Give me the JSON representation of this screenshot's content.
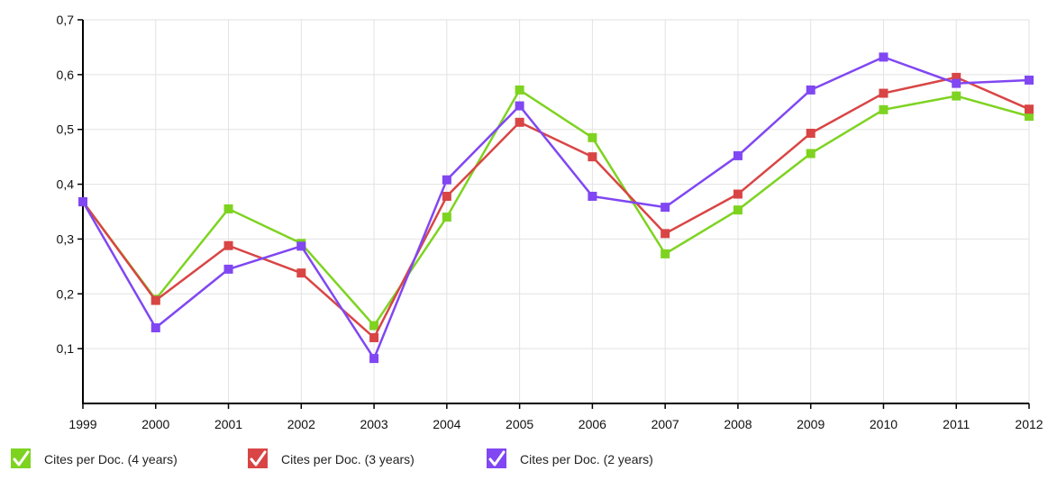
{
  "chart_data": {
    "type": "line",
    "title": "",
    "xlabel": "",
    "ylabel": "",
    "x": [
      "1999",
      "2000",
      "2001",
      "2002",
      "2003",
      "2004",
      "2005",
      "2006",
      "2007",
      "2008",
      "2009",
      "2010",
      "2011",
      "2012"
    ],
    "ylim": [
      0,
      0.7
    ],
    "y_ticks": [
      {
        "value": 0.1,
        "label": "0,1"
      },
      {
        "value": 0.2,
        "label": "0,2"
      },
      {
        "value": 0.3,
        "label": "0,3"
      },
      {
        "value": 0.4,
        "label": "0,4"
      },
      {
        "value": 0.5,
        "label": "0,5"
      },
      {
        "value": 0.6,
        "label": "0,6"
      },
      {
        "value": 0.7,
        "label": "0,7"
      }
    ],
    "grid": true,
    "legend_position": "bottom-left",
    "series": [
      {
        "name": "Cites per Doc. (4 years)",
        "color": "#7ed321",
        "values": [
          0.368,
          0.19,
          0.355,
          0.292,
          0.142,
          0.34,
          0.572,
          0.485,
          0.273,
          0.353,
          0.456,
          0.536,
          0.561,
          0.524
        ]
      },
      {
        "name": "Cites per Doc. (3 years)",
        "color": "#d94545",
        "values": [
          0.368,
          0.188,
          0.288,
          0.238,
          0.12,
          0.378,
          0.513,
          0.45,
          0.31,
          0.382,
          0.493,
          0.566,
          0.595,
          0.537
        ]
      },
      {
        "name": "Cites per Doc. (2 years)",
        "color": "#8047f2",
        "values": [
          0.368,
          0.138,
          0.245,
          0.287,
          0.082,
          0.408,
          0.543,
          0.378,
          0.358,
          0.452,
          0.572,
          0.632,
          0.584,
          0.59
        ]
      }
    ]
  }
}
